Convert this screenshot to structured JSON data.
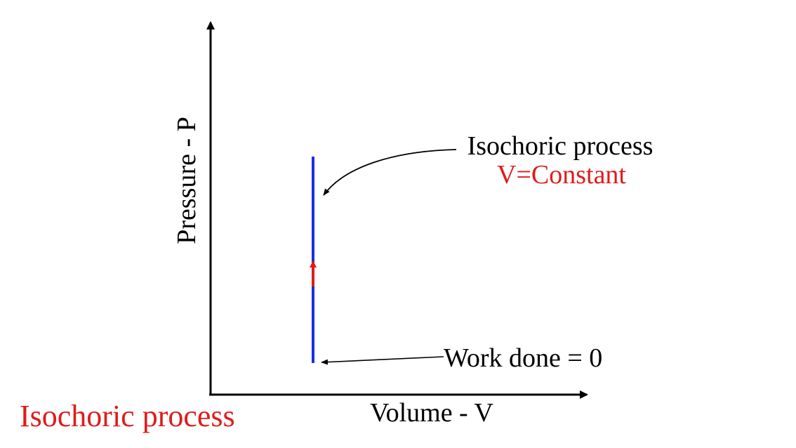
{
  "diagram": {
    "y_axis_label": "Pressure - P",
    "x_axis_label": "Volume - V",
    "annotation_process": {
      "line1": "Isochoric process",
      "line2": "V=Constant"
    },
    "annotation_work": "Work done = 0",
    "caption": "Isochoric process",
    "colors": {
      "axis": "#000000",
      "process_line": "#1a2fe6",
      "direction_arrow": "#e01b1b",
      "highlight_text": "#e01b1b",
      "annotation_text": "#000000"
    }
  }
}
